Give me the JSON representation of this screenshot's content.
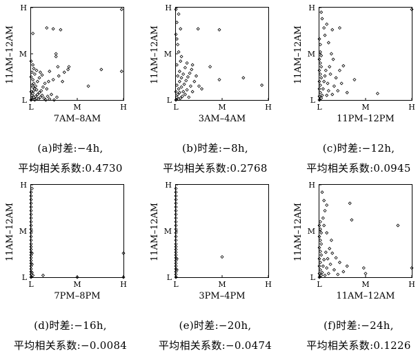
{
  "chart_data": [
    {
      "type": "scatter",
      "panel_label": "(a)",
      "caption_line1": "(a)时差:−4h,",
      "caption_line2": "平均相关系数:0.4730",
      "xlabel": "7AM–8AM",
      "ylabel": "11AM–12AM",
      "x_ticks": [
        "L",
        "M",
        "H"
      ],
      "y_ticks": [
        "L",
        "M",
        "H"
      ],
      "xlim": [
        0,
        1
      ],
      "ylim": [
        0,
        1
      ],
      "grid": false,
      "points": [
        [
          0.0,
          0.0
        ],
        [
          0.01,
          0.02
        ],
        [
          0.02,
          0.01
        ],
        [
          0.03,
          0.03
        ],
        [
          0.04,
          0.0
        ],
        [
          0.01,
          0.05
        ],
        [
          0.02,
          0.07
        ],
        [
          0.0,
          0.09
        ],
        [
          0.03,
          0.1
        ],
        [
          0.05,
          0.04
        ],
        [
          0.06,
          0.02
        ],
        [
          0.07,
          0.06
        ],
        [
          0.04,
          0.12
        ],
        [
          0.02,
          0.14
        ],
        [
          0.08,
          0.01
        ],
        [
          0.1,
          0.03
        ],
        [
          0.09,
          0.08
        ],
        [
          0.06,
          0.11
        ],
        [
          0.01,
          0.16
        ],
        [
          0.12,
          0.05
        ],
        [
          0.14,
          0.02
        ],
        [
          0.03,
          0.18
        ],
        [
          0.05,
          0.15
        ],
        [
          0.11,
          0.1
        ],
        [
          0.16,
          0.0
        ],
        [
          0.18,
          0.04
        ],
        [
          0.02,
          0.22
        ],
        [
          0.07,
          0.2
        ],
        [
          0.0,
          0.25
        ],
        [
          0.13,
          0.14
        ],
        [
          0.2,
          0.01
        ],
        [
          0.04,
          0.28
        ],
        [
          0.15,
          0.18
        ],
        [
          0.09,
          0.24
        ],
        [
          0.01,
          0.3
        ],
        [
          0.22,
          0.06
        ],
        [
          0.25,
          0.0
        ],
        [
          0.17,
          0.12
        ],
        [
          0.03,
          0.34
        ],
        [
          0.12,
          0.27
        ],
        [
          0.19,
          0.2
        ],
        [
          0.28,
          0.03
        ],
        [
          0.06,
          0.32
        ],
        [
          0.1,
          0.3
        ],
        [
          0.02,
          0.38
        ],
        [
          0.0,
          0.42
        ],
        [
          0.24,
          0.22
        ],
        [
          0.2,
          0.31
        ],
        [
          0.29,
          0.36
        ],
        [
          0.3,
          0.26
        ],
        [
          0.34,
          0.2
        ],
        [
          0.36,
          0.3
        ],
        [
          0.4,
          0.33
        ],
        [
          0.27,
          0.47
        ],
        [
          0.41,
          0.36
        ],
        [
          0.62,
          0.15
        ],
        [
          0.76,
          0.33
        ],
        [
          0.98,
          0.31
        ],
        [
          0.27,
          0.5
        ],
        [
          0.02,
          0.72
        ],
        [
          0.17,
          0.78
        ],
        [
          0.24,
          0.77
        ],
        [
          0.32,
          0.76
        ],
        [
          0.98,
          0.98
        ]
      ]
    },
    {
      "type": "scatter",
      "panel_label": "(b)",
      "caption_line1": "(b)时差:−8h,",
      "caption_line2": "平均相关系数:0.2768",
      "xlabel": "3AM–4AM",
      "ylabel": "11AM–12AM",
      "x_ticks": [
        "L",
        "M",
        "H"
      ],
      "y_ticks": [
        "L",
        "M",
        "H"
      ],
      "xlim": [
        0,
        1
      ],
      "ylim": [
        0,
        1
      ],
      "grid": false,
      "points": [
        [
          0.0,
          0.0
        ],
        [
          0.01,
          0.03
        ],
        [
          0.03,
          0.01
        ],
        [
          0.02,
          0.06
        ],
        [
          0.05,
          0.02
        ],
        [
          0.0,
          0.09
        ],
        [
          0.04,
          0.08
        ],
        [
          0.07,
          0.04
        ],
        [
          0.03,
          0.12
        ],
        [
          0.08,
          0.09
        ],
        [
          0.06,
          0.14
        ],
        [
          0.1,
          0.06
        ],
        [
          0.01,
          0.16
        ],
        [
          0.12,
          0.11
        ],
        [
          0.09,
          0.17
        ],
        [
          0.04,
          0.2
        ],
        [
          0.14,
          0.03
        ],
        [
          0.11,
          0.21
        ],
        [
          0.16,
          0.15
        ],
        [
          0.06,
          0.24
        ],
        [
          0.02,
          0.26
        ],
        [
          0.13,
          0.25
        ],
        [
          0.18,
          0.09
        ],
        [
          0.08,
          0.28
        ],
        [
          0.15,
          0.29
        ],
        [
          0.2,
          0.2
        ],
        [
          0.04,
          0.31
        ],
        [
          0.17,
          0.33
        ],
        [
          0.1,
          0.35
        ],
        [
          0.22,
          0.26
        ],
        [
          0.01,
          0.38
        ],
        [
          0.05,
          0.42
        ],
        [
          0.12,
          0.4
        ],
        [
          0.18,
          0.38
        ],
        [
          0.06,
          0.47
        ],
        [
          0.03,
          0.52
        ],
        [
          0.02,
          0.6
        ],
        [
          0.01,
          0.66
        ],
        [
          0.0,
          0.71
        ],
        [
          0.25,
          0.15
        ],
        [
          0.28,
          0.12
        ],
        [
          0.37,
          0.36
        ],
        [
          0.47,
          0.22
        ],
        [
          0.93,
          0.16
        ],
        [
          0.73,
          0.24
        ],
        [
          0.05,
          0.77
        ],
        [
          0.24,
          0.77
        ],
        [
          0.47,
          0.76
        ],
        [
          0.01,
          0.84
        ],
        [
          0.03,
          0.93
        ],
        [
          0.0,
          0.98
        ]
      ]
    },
    {
      "type": "scatter",
      "panel_label": "(c)",
      "caption_line1": "(c)时差:−12h,",
      "caption_line2": "平均相关系数:0.0945",
      "xlabel": "11PM–12PM",
      "ylabel": "11AM–12AM",
      "x_ticks": [
        "L",
        "M",
        "H"
      ],
      "y_ticks": [
        "L",
        "M",
        "H"
      ],
      "xlim": [
        0,
        1
      ],
      "ylim": [
        0,
        1
      ],
      "grid": false,
      "points": [
        [
          0.0,
          0.0
        ],
        [
          0.0,
          0.04
        ],
        [
          0.01,
          0.08
        ],
        [
          0.0,
          0.12
        ],
        [
          0.02,
          0.02
        ],
        [
          0.01,
          0.16
        ],
        [
          0.0,
          0.2
        ],
        [
          0.02,
          0.24
        ],
        [
          0.01,
          0.28
        ],
        [
          0.0,
          0.32
        ],
        [
          0.02,
          0.36
        ],
        [
          0.01,
          0.4
        ],
        [
          0.0,
          0.44
        ],
        [
          0.02,
          0.48
        ],
        [
          0.01,
          0.52
        ],
        [
          0.03,
          0.05
        ],
        [
          0.04,
          0.12
        ],
        [
          0.05,
          0.2
        ],
        [
          0.06,
          0.26
        ],
        [
          0.08,
          0.05
        ],
        [
          0.1,
          0.1
        ],
        [
          0.07,
          0.32
        ],
        [
          0.09,
          0.18
        ],
        [
          0.12,
          0.28
        ],
        [
          0.14,
          0.06
        ],
        [
          0.11,
          0.36
        ],
        [
          0.16,
          0.15
        ],
        [
          0.18,
          0.24
        ],
        [
          0.2,
          0.1
        ],
        [
          0.22,
          0.32
        ],
        [
          0.24,
          0.18
        ],
        [
          0.26,
          0.37
        ],
        [
          0.3,
          0.08
        ],
        [
          0.15,
          0.44
        ],
        [
          0.13,
          0.5
        ],
        [
          0.1,
          0.62
        ],
        [
          0.06,
          0.7
        ],
        [
          0.05,
          0.78
        ],
        [
          0.08,
          0.82
        ],
        [
          0.14,
          0.76
        ],
        [
          0.22,
          0.78
        ],
        [
          0.63,
          0.07
        ],
        [
          0.38,
          0.22
        ],
        [
          0.03,
          0.88
        ],
        [
          0.02,
          0.95
        ],
        [
          0.01,
          0.6
        ],
        [
          0.0,
          0.66
        ],
        [
          1.0,
          0.98
        ]
      ]
    },
    {
      "type": "scatter",
      "panel_label": "(d)",
      "caption_line1": "(d)时差:−16h,",
      "caption_line2": "平均相关系数:−0.0084",
      "xlabel": "7PM–8PM",
      "ylabel": "11AM–12AM",
      "x_ticks": [
        "L",
        "M",
        "H"
      ],
      "y_ticks": [
        "L",
        "M",
        "H"
      ],
      "xlim": [
        0,
        1
      ],
      "ylim": [
        0,
        1
      ],
      "grid": false,
      "points": [
        [
          0.0,
          0.0
        ],
        [
          0.0,
          0.03
        ],
        [
          0.0,
          0.06
        ],
        [
          0.0,
          0.09
        ],
        [
          0.0,
          0.12
        ],
        [
          0.0,
          0.15
        ],
        [
          0.0,
          0.18
        ],
        [
          0.0,
          0.21
        ],
        [
          0.0,
          0.24
        ],
        [
          0.0,
          0.27
        ],
        [
          0.0,
          0.3
        ],
        [
          0.0,
          0.33
        ],
        [
          0.0,
          0.36
        ],
        [
          0.0,
          0.4
        ],
        [
          0.0,
          0.44
        ],
        [
          0.0,
          0.48
        ],
        [
          0.0,
          0.52
        ],
        [
          0.0,
          0.56
        ],
        [
          0.0,
          0.6
        ],
        [
          0.0,
          0.64
        ],
        [
          0.0,
          0.68
        ],
        [
          0.0,
          0.72
        ],
        [
          0.0,
          0.76
        ],
        [
          0.0,
          0.8
        ],
        [
          0.0,
          0.84
        ],
        [
          0.0,
          0.88
        ],
        [
          0.0,
          0.92
        ],
        [
          0.01,
          0.96
        ],
        [
          0.01,
          0.05
        ],
        [
          0.01,
          0.14
        ],
        [
          0.01,
          0.26
        ],
        [
          0.02,
          0.02
        ],
        [
          0.13,
          0.02
        ],
        [
          0.5,
          0.0
        ],
        [
          1.0,
          0.26
        ],
        [
          1.0,
          0.0
        ]
      ]
    },
    {
      "type": "scatter",
      "panel_label": "(e)",
      "caption_line1": "(e)时差:−20h,",
      "caption_line2": "平均相关系数:−0.0474",
      "xlabel": "3PM–4PM",
      "ylabel": "11AM–12AM",
      "x_ticks": [
        "L",
        "M",
        "H"
      ],
      "y_ticks": [
        "L",
        "M",
        "H"
      ],
      "xlim": [
        0,
        1
      ],
      "ylim": [
        0,
        1
      ],
      "grid": false,
      "points": [
        [
          0.0,
          0.0
        ],
        [
          0.0,
          0.03
        ],
        [
          0.0,
          0.06
        ],
        [
          0.0,
          0.09
        ],
        [
          0.0,
          0.12
        ],
        [
          0.0,
          0.15
        ],
        [
          0.0,
          0.18
        ],
        [
          0.0,
          0.21
        ],
        [
          0.0,
          0.24
        ],
        [
          0.0,
          0.27
        ],
        [
          0.0,
          0.3
        ],
        [
          0.0,
          0.33
        ],
        [
          0.0,
          0.36
        ],
        [
          0.0,
          0.4
        ],
        [
          0.0,
          0.44
        ],
        [
          0.0,
          0.48
        ],
        [
          0.0,
          0.52
        ],
        [
          0.0,
          0.56
        ],
        [
          0.0,
          0.6
        ],
        [
          0.0,
          0.64
        ],
        [
          0.0,
          0.68
        ],
        [
          0.0,
          0.72
        ],
        [
          0.0,
          0.76
        ],
        [
          0.0,
          0.8
        ],
        [
          0.0,
          0.84
        ],
        [
          0.0,
          0.88
        ],
        [
          0.0,
          0.92
        ],
        [
          0.0,
          0.96
        ],
        [
          0.01,
          0.08
        ],
        [
          0.01,
          0.2
        ],
        [
          0.5,
          0.22
        ]
      ]
    },
    {
      "type": "scatter",
      "panel_label": "(f)",
      "caption_line1": "(f)时差:−24h,",
      "caption_line2": "平均相关系数:0.1226",
      "xlabel": "11AM–12AM",
      "ylabel": "11AM–12AM",
      "x_ticks": [
        "L",
        "M",
        "H"
      ],
      "y_ticks": [
        "L",
        "M",
        "H"
      ],
      "xlim": [
        0,
        1
      ],
      "ylim": [
        0,
        1
      ],
      "grid": false,
      "points": [
        [
          0.0,
          0.0
        ],
        [
          0.0,
          0.04
        ],
        [
          0.01,
          0.08
        ],
        [
          0.0,
          0.12
        ],
        [
          0.02,
          0.02
        ],
        [
          0.01,
          0.16
        ],
        [
          0.0,
          0.2
        ],
        [
          0.02,
          0.24
        ],
        [
          0.01,
          0.28
        ],
        [
          0.0,
          0.32
        ],
        [
          0.02,
          0.36
        ],
        [
          0.01,
          0.4
        ],
        [
          0.0,
          0.44
        ],
        [
          0.02,
          0.48
        ],
        [
          0.01,
          0.52
        ],
        [
          0.0,
          0.56
        ],
        [
          0.01,
          0.6
        ],
        [
          0.03,
          0.05
        ],
        [
          0.04,
          0.12
        ],
        [
          0.05,
          0.19
        ],
        [
          0.06,
          0.02
        ],
        [
          0.07,
          0.27
        ],
        [
          0.08,
          0.1
        ],
        [
          0.1,
          0.04
        ],
        [
          0.09,
          0.2
        ],
        [
          0.12,
          0.14
        ],
        [
          0.14,
          0.26
        ],
        [
          0.11,
          0.31
        ],
        [
          0.16,
          0.08
        ],
        [
          0.18,
          0.21
        ],
        [
          0.2,
          0.03
        ],
        [
          0.22,
          0.16
        ],
        [
          0.13,
          0.4
        ],
        [
          0.08,
          0.48
        ],
        [
          0.05,
          0.56
        ],
        [
          0.04,
          0.64
        ],
        [
          0.06,
          0.72
        ],
        [
          0.05,
          0.83
        ],
        [
          0.08,
          0.78
        ],
        [
          0.26,
          0.06
        ],
        [
          0.3,
          0.12
        ],
        [
          0.35,
          0.62
        ],
        [
          0.33,
          0.8
        ],
        [
          0.5,
          0.04
        ],
        [
          0.48,
          0.1
        ],
        [
          0.85,
          0.56
        ],
        [
          0.03,
          0.92
        ],
        [
          1.0,
          0.1
        ]
      ]
    }
  ]
}
